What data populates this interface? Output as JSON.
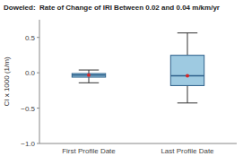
{
  "chart_data": {
    "type": "box",
    "title": "Doweled:  Rate of Change of IRI Between 0.02 and 0.04 m/km/yr",
    "y_label": "CI x 1000 (1/m)",
    "categories": [
      "First Profile Date",
      "Last Profile Date"
    ],
    "values": [
      {
        "median": -0.033,
        "q1": -0.062,
        "q3": -0.011,
        "whisker_low": -0.142,
        "whisker_high": 0.039,
        "mean": -0.033
      },
      {
        "median": -0.043,
        "q1": -0.181,
        "q3": 0.247,
        "whisker_low": -0.427,
        "whisker_high": 0.563,
        "mean": -0.043
      }
    ],
    "ylim": [
      -1.0,
      0.75
    ],
    "yticks": [
      {
        "value": -1.0,
        "label": "−1.0"
      },
      {
        "value": -0.5,
        "label": "−0.5"
      },
      {
        "value": 0.0,
        "label": "0.0"
      },
      {
        "value": 0.5,
        "label": "0.5"
      }
    ],
    "grid": false
  }
}
